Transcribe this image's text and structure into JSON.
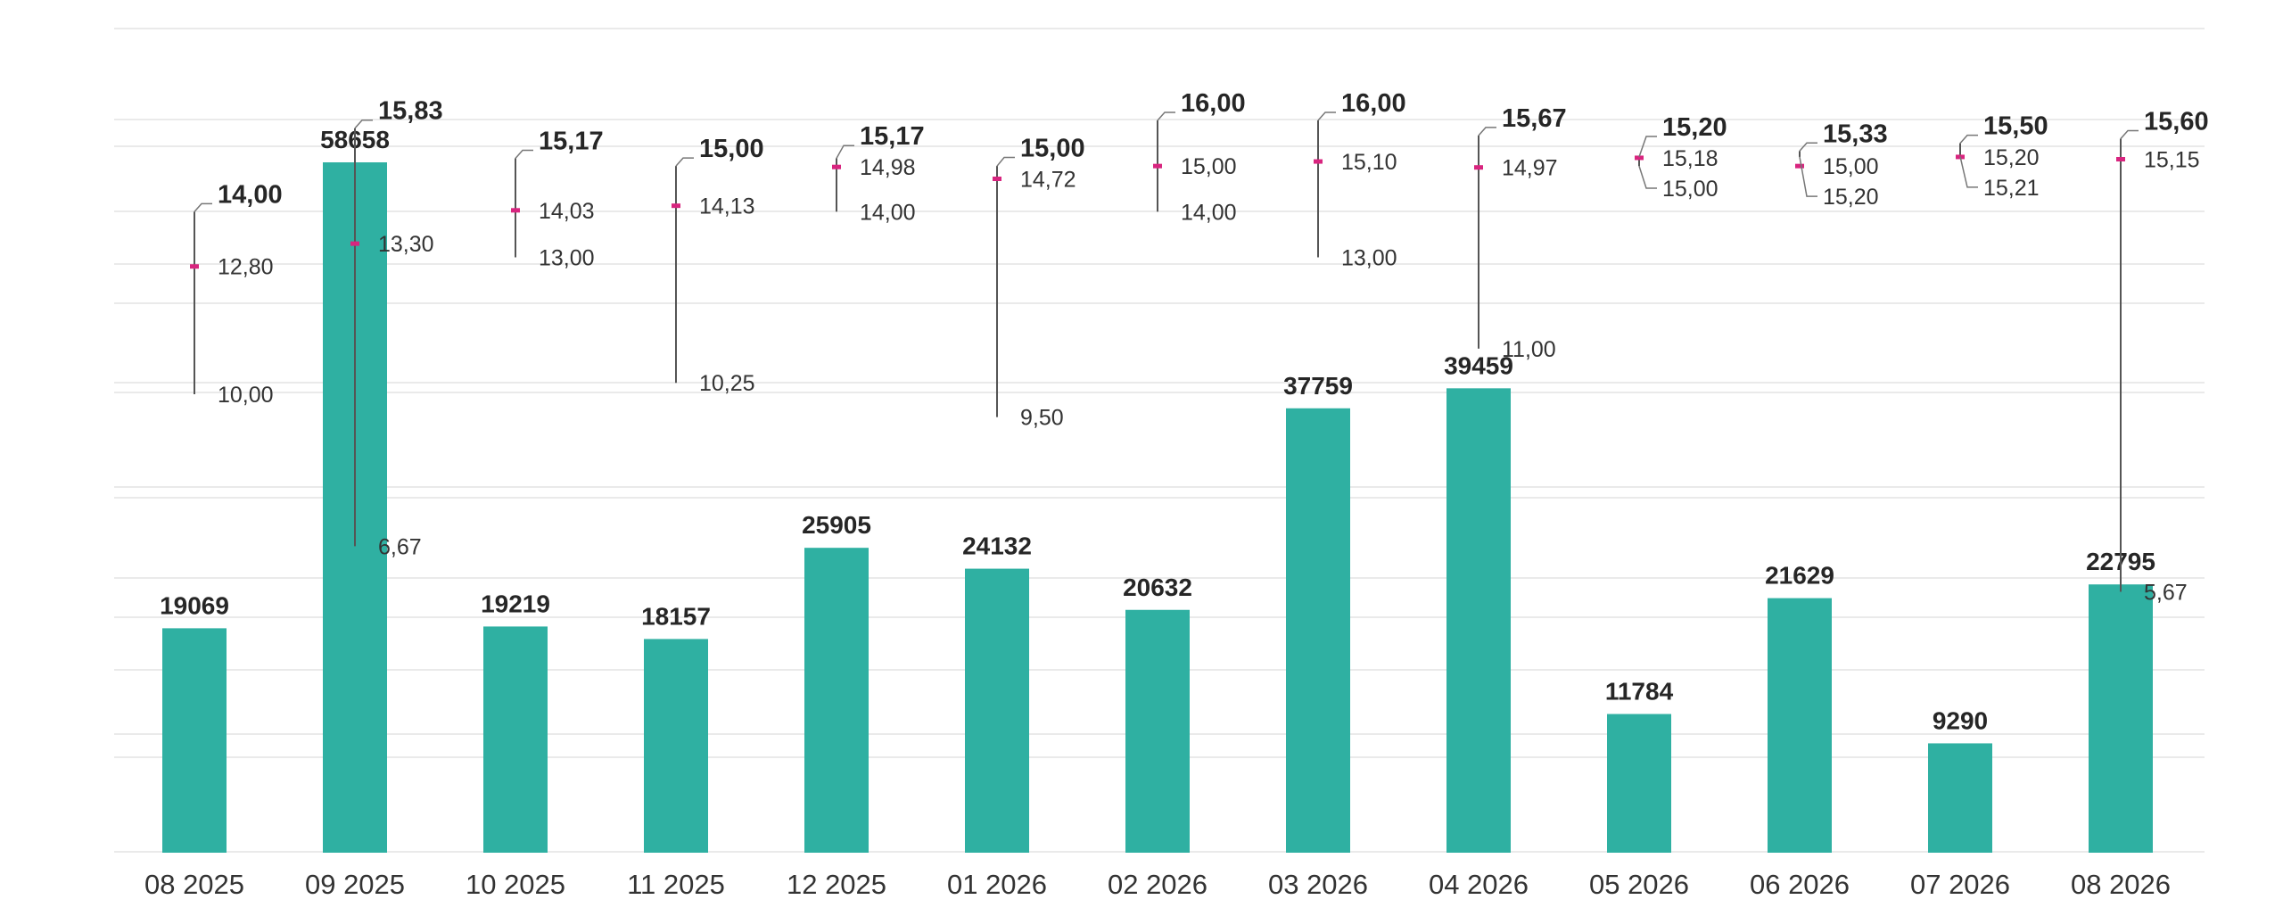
{
  "chart_data": {
    "type": "bar",
    "categories": [
      "08 2025",
      "09 2025",
      "10 2025",
      "11 2025",
      "12 2025",
      "01 2026",
      "02 2026",
      "03 2026",
      "04 2026",
      "05 2026",
      "06 2026",
      "07 2026",
      "08 2026"
    ],
    "series": [
      {
        "type": "bar",
        "values": [
          19069,
          58658,
          19219,
          18157,
          25905,
          24132,
          20632,
          37759,
          39459,
          11784,
          21629,
          9290,
          22795
        ],
        "color": "#2fb0a2",
        "ylim": [
          0,
          70000
        ]
      },
      {
        "type": "range",
        "high": [
          14.0,
          15.83,
          15.17,
          15.0,
          15.17,
          15.0,
          16.0,
          16.0,
          15.67,
          15.2,
          15.33,
          15.5,
          15.6
        ],
        "mean": [
          12.8,
          13.3,
          14.03,
          14.13,
          14.98,
          14.72,
          15.0,
          15.1,
          14.97,
          15.18,
          15.0,
          15.2,
          15.15
        ],
        "low": [
          10.0,
          6.67,
          13.0,
          10.25,
          14.0,
          9.5,
          14.0,
          13.0,
          11.0,
          15.0,
          15.2,
          15.21,
          5.67
        ],
        "high_labels": [
          "14,00",
          "15,83",
          "15,17",
          "15,00",
          "15,17",
          "15,00",
          "16,00",
          "16,00",
          "15,67",
          "15,20",
          "15,33",
          "15,50",
          "15,60"
        ],
        "mean_labels": [
          "12,80",
          "13,30",
          "14,03",
          "14,13",
          "14,98",
          "14,72",
          "15,00",
          "15,10",
          "14,97",
          "15,18",
          "15,00",
          "15,20",
          "15,15"
        ],
        "low_labels": [
          "10,00",
          "6,67",
          "13,00",
          "10,25",
          "14,00",
          "9,50",
          "14,00",
          "13,00",
          "11,00",
          "15,00",
          "15,20",
          "15,21",
          "5,67"
        ],
        "mean_color": "#d8257f"
      }
    ],
    "xlabel": "",
    "ylabel": "",
    "grid": true,
    "legend": "none"
  }
}
